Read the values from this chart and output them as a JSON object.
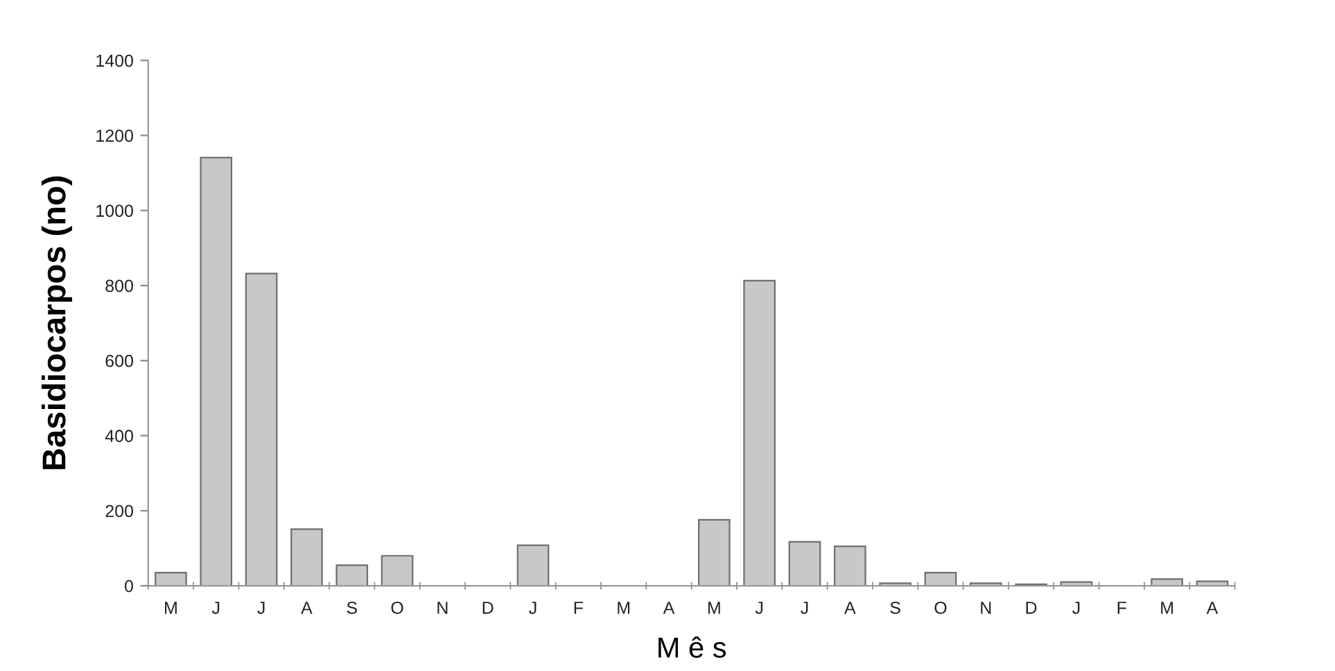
{
  "chart_data": {
    "type": "bar",
    "xlabel": "M ê s",
    "ylabel": "Basidiocarpos (no)",
    "categories": [
      "M",
      "J",
      "J",
      "A",
      "S",
      "O",
      "N",
      "D",
      "J",
      "F",
      "M",
      "A",
      "M",
      "J",
      "J",
      "A",
      "S",
      "O",
      "N",
      "D",
      "J",
      "F",
      "M",
      "A"
    ],
    "values": [
      35,
      1141,
      832,
      151,
      55,
      80,
      0,
      0,
      108,
      0,
      0,
      0,
      176,
      813,
      117,
      105,
      7,
      35,
      7,
      4,
      10,
      0,
      18,
      12
    ],
    "color": "#c6c8ca",
    "ylim": [
      0,
      1400
    ],
    "yticks": [
      0,
      200,
      400,
      600,
      800,
      1000,
      1200,
      1400
    ],
    "grid": false
  }
}
